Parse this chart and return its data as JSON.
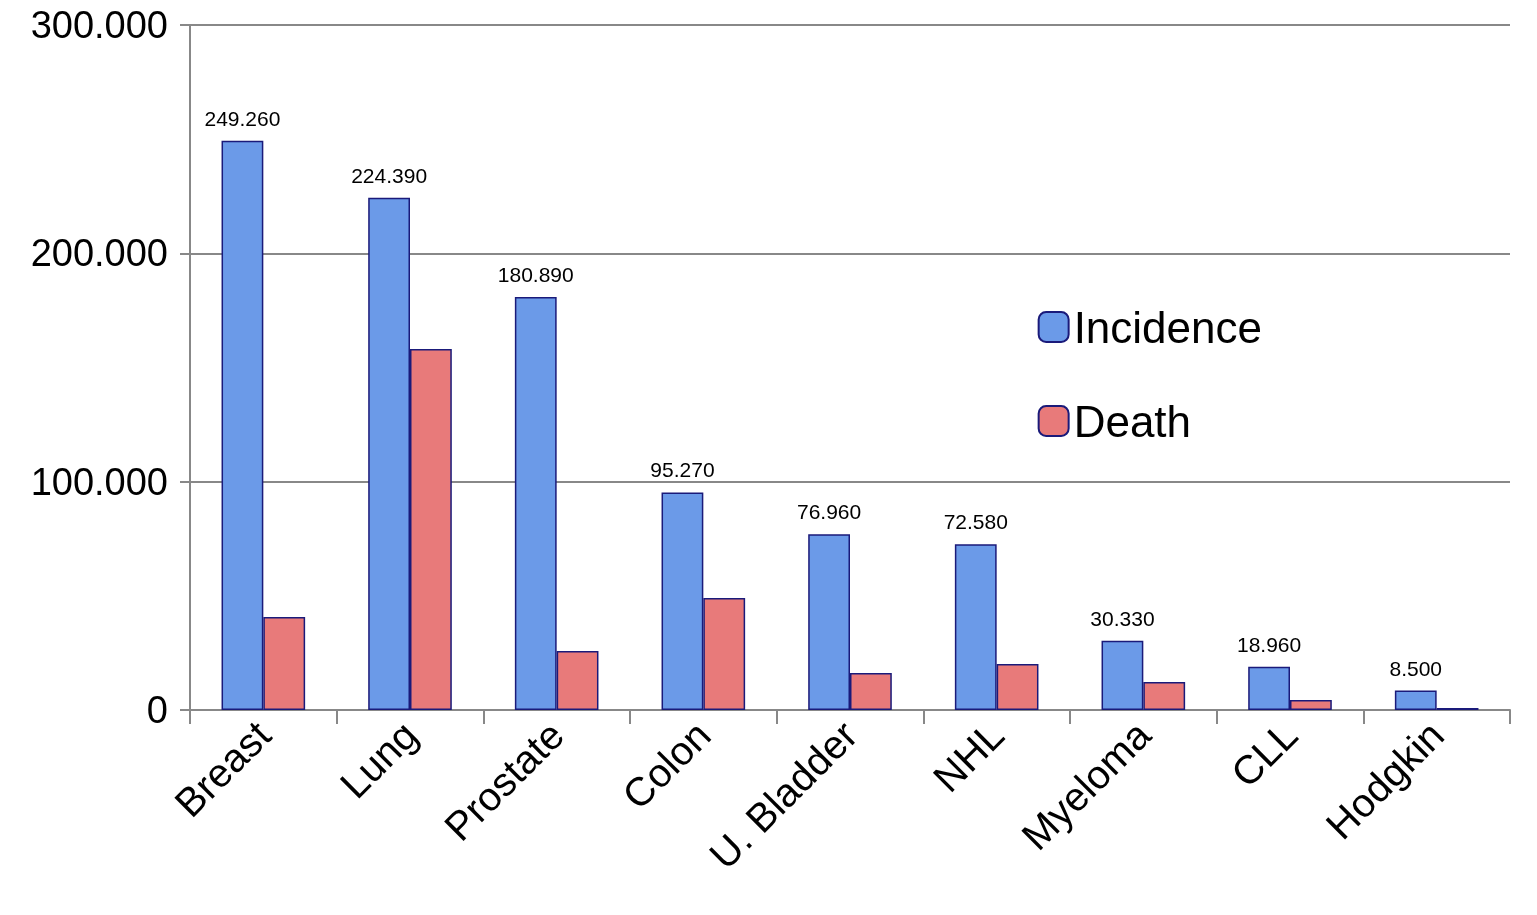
{
  "chart_data": {
    "type": "bar",
    "categories": [
      "Breast",
      "Lung",
      "Prostate",
      "Colon",
      "U. Bladder",
      "NHL",
      "Myeloma",
      "CLL",
      "Hodgkin"
    ],
    "series": [
      {
        "name": "Incidence",
        "color": "#6b9ae8",
        "values": [
          249260,
          224390,
          180890,
          95270,
          76960,
          72580,
          30330,
          18960,
          8500
        ],
        "value_labels": [
          "249.260",
          "224.390",
          "180.890",
          "95.270",
          "76.960",
          "72.580",
          "30.330",
          "18.960",
          "8.500"
        ]
      },
      {
        "name": "Death",
        "color": "#e87a7a",
        "values": [
          40700,
          158100,
          25800,
          49000,
          16200,
          20100,
          12300,
          4400,
          900
        ]
      }
    ],
    "ylim": [
      0,
      300000
    ],
    "yticks": [
      {
        "value": 0,
        "label": "0"
      },
      {
        "value": 100000,
        "label": "100.000"
      },
      {
        "value": 200000,
        "label": "200.000"
      },
      {
        "value": 300000,
        "label": "300.000"
      }
    ],
    "grid": "y",
    "legend": "right"
  }
}
